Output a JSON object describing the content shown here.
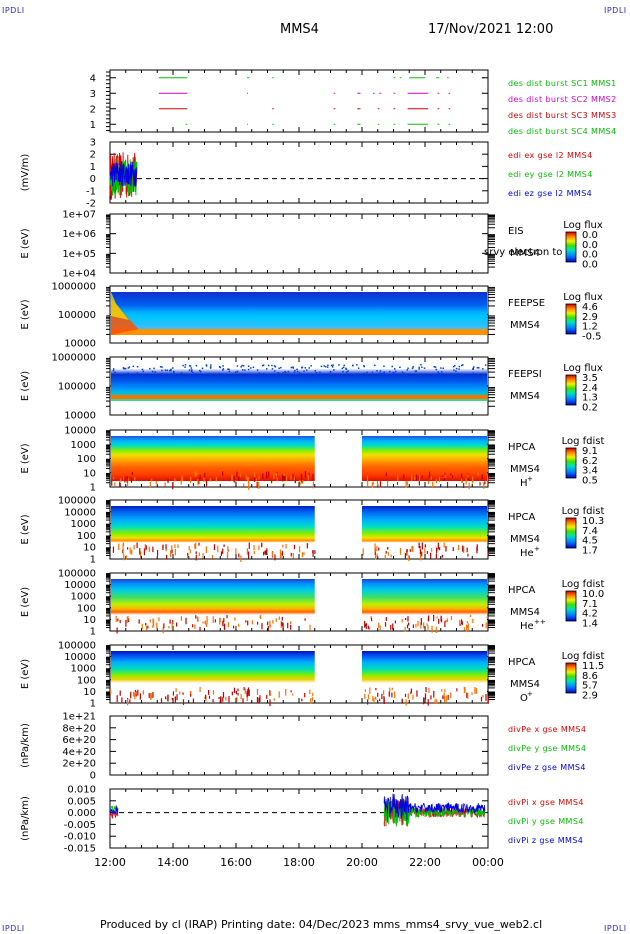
{
  "header": {
    "corner_tl": "IPDLI",
    "corner_tr": "IPDLI",
    "corner_bl": "IPDLI",
    "corner_br": "IPDLI",
    "mission": "MMS4",
    "datetime": "17/Nov/2021 12:00"
  },
  "footer": {
    "text": "Produced by cl (IRAP)   Printing date: 04/Dec/2023   mms_mms4_srvy_vue_web2.cl"
  },
  "colors": {
    "red": "#e00000",
    "green": "#00c000",
    "blue": "#0000e0",
    "magenta": "#d000d0"
  },
  "chart_data": {
    "type": "multi-panel time series / spectrogram",
    "x_axis": {
      "ticks": [
        "12:00",
        "14:00",
        "16:00",
        "18:00",
        "20:00",
        "22:00",
        "00:00"
      ],
      "range_hours": [
        12,
        24
      ]
    },
    "panels": [
      {
        "id": "burst",
        "type": "status",
        "ylim": [
          0.5,
          4.5
        ],
        "y_ticks": [
          "4",
          "3",
          "2",
          "1"
        ],
        "series": [
          {
            "name": "des dist burst SC1 MMS1",
            "color": "#00c000",
            "level": 4,
            "segments": [
              [
                13.55,
                14.45
              ],
              [
                16.35,
                16.42
              ],
              [
                17.15,
                17.2
              ],
              [
                21.0,
                21.05
              ],
              [
                21.2,
                21.25
              ],
              [
                21.5,
                22.0
              ],
              [
                22.35,
                22.45
              ],
              [
                22.7,
                22.75
              ],
              [
                23.8,
                23.9
              ]
            ]
          },
          {
            "name": "des dist burst SC2 MMS2",
            "color": "#d000d0",
            "level": 3,
            "segments": [
              [
                13.55,
                14.45
              ],
              [
                16.35,
                16.38
              ],
              [
                19.1,
                19.15
              ],
              [
                19.85,
                19.95
              ],
              [
                20.35,
                20.4
              ],
              [
                20.55,
                20.6
              ],
              [
                21.0,
                21.05
              ],
              [
                21.45,
                22.1
              ],
              [
                22.4,
                22.45
              ],
              [
                22.75,
                22.8
              ],
              [
                23.8,
                23.85
              ]
            ]
          },
          {
            "name": "des dist burst SC3 MMS3",
            "color": "#d00000",
            "level": 2,
            "segments": [
              [
                13.55,
                14.45
              ],
              [
                17.15,
                17.2
              ],
              [
                19.1,
                19.15
              ],
              [
                19.85,
                19.95
              ],
              [
                20.5,
                20.55
              ],
              [
                21.0,
                21.05
              ],
              [
                21.45,
                22.1
              ],
              [
                22.4,
                22.45
              ],
              [
                22.75,
                22.8
              ],
              [
                23.8,
                23.85
              ]
            ]
          },
          {
            "name": "des dist burst SC4 MMS4",
            "color": "#00c000",
            "level": 1,
            "segments": [
              [
                14.4,
                14.45
              ],
              [
                16.35,
                16.38
              ],
              [
                17.15,
                17.2
              ],
              [
                19.1,
                19.15
              ],
              [
                19.85,
                19.95
              ],
              [
                20.5,
                20.55
              ],
              [
                21.0,
                21.05
              ],
              [
                21.45,
                22.1
              ],
              [
                22.4,
                22.45
              ],
              [
                22.75,
                22.8
              ],
              [
                23.8,
                23.9
              ]
            ]
          }
        ]
      },
      {
        "id": "edi",
        "type": "line",
        "ylabel": "(mV/m)",
        "ylim": [
          -2,
          3
        ],
        "y_ticks": [
          "3",
          "2",
          "1",
          "0",
          "-1",
          "-2"
        ],
        "data_span_hours": [
          12.0,
          12.85
        ],
        "series": [
          {
            "name": "edi ex gse l2 MMS4",
            "color": "#e00000"
          },
          {
            "name": "edi ey gse l2 MMS4",
            "color": "#00c000"
          },
          {
            "name": "edi ez gse l2 MMS4",
            "color": "#0000e0"
          }
        ]
      },
      {
        "id": "eis",
        "type": "spectrogram",
        "ylabel": "E (eV)",
        "y_ticks": [
          "1e+07",
          "1e+06",
          "1e+05",
          "1e+04"
        ],
        "label_lines": [
          "EIS",
          "MMS4"
        ],
        "overlay_text": "srvy electron to",
        "colorbar": {
          "title": "Log flux",
          "ticks": [
            "0.0",
            "0.0",
            "0.0",
            "0.0"
          ]
        },
        "empty": true
      },
      {
        "id": "feepse",
        "type": "spectrogram",
        "ylabel": "E (eV)",
        "y_ticks": [
          "1000000",
          "100000",
          "10000"
        ],
        "label_lines": [
          "FEEPSE",
          "MMS4"
        ],
        "colorbar": {
          "title": "Log flux",
          "ticks": [
            "4.6",
            "2.9",
            "1.2",
            "-0.5"
          ]
        }
      },
      {
        "id": "feepsi",
        "type": "spectrogram",
        "ylabel": "E (eV)",
        "y_ticks": [
          "1000000",
          "100000",
          "10000"
        ],
        "label_lines": [
          "FEEPSI",
          "MMS4"
        ],
        "colorbar": {
          "title": "Log flux",
          "ticks": [
            "3.5",
            "2.4",
            "1.3",
            "0.2"
          ]
        }
      },
      {
        "id": "hpca_h",
        "type": "spectrogram",
        "ylabel": "E (eV)",
        "y_ticks": [
          "10000",
          "1000",
          "100",
          "10",
          "1"
        ],
        "label_lines": [
          "HPCA",
          "MMS4"
        ],
        "species": "H",
        "species_charge": "+",
        "gap_hours": [
          18.5,
          20.0
        ],
        "colorbar": {
          "title": "Log fdist",
          "ticks": [
            "9.1",
            "6.2",
            "3.4",
            "0.5"
          ]
        }
      },
      {
        "id": "hpca_he",
        "type": "spectrogram",
        "ylabel": "E (eV)",
        "y_ticks": [
          "100000",
          "10000",
          "1000",
          "100",
          "10",
          "1"
        ],
        "label_lines": [
          "HPCA",
          "MMS4"
        ],
        "species": "He",
        "species_charge": "+",
        "gap_hours": [
          18.5,
          20.0
        ],
        "colorbar": {
          "title": "Log fdist",
          "ticks": [
            "10.3",
            "7.4",
            "4.5",
            "1.7"
          ]
        }
      },
      {
        "id": "hpca_he2",
        "type": "spectrogram",
        "ylabel": "E (eV)",
        "y_ticks": [
          "100000",
          "10000",
          "1000",
          "100",
          "10",
          "1"
        ],
        "label_lines": [
          "HPCA",
          "MMS4"
        ],
        "species": "He",
        "species_charge": "++",
        "gap_hours": [
          18.5,
          20.0
        ],
        "colorbar": {
          "title": "Log fdist",
          "ticks": [
            "10.0",
            "7.1",
            "4.2",
            "1.4"
          ]
        }
      },
      {
        "id": "hpca_o",
        "type": "spectrogram",
        "ylabel": "E (eV)",
        "y_ticks": [
          "100000",
          "10000",
          "1000",
          "100",
          "10",
          "1"
        ],
        "label_lines": [
          "HPCA",
          "MMS4"
        ],
        "species": "O",
        "species_charge": "+",
        "gap_hours": [
          18.5,
          20.0
        ],
        "colorbar": {
          "title": "Log fdist",
          "ticks": [
            "11.5",
            "8.6",
            "5.7",
            "2.9"
          ]
        }
      },
      {
        "id": "divpe",
        "type": "line",
        "ylabel": "(nPa/km)",
        "y_ticks": [
          "1e+21",
          "8e+20",
          "6e+20",
          "4e+20",
          "2e+20",
          "0"
        ],
        "ylim": [
          0,
          1e+21
        ],
        "series": [
          {
            "name": "divPe x gse MMS4",
            "color": "#e00000"
          },
          {
            "name": "divPe y gse MMS4",
            "color": "#00c000"
          },
          {
            "name": "divPe z gse MMS4",
            "color": "#0000e0"
          }
        ]
      },
      {
        "id": "divpi",
        "type": "line",
        "ylabel": "(nPa/km)",
        "y_ticks": [
          "0.010",
          "0.005",
          "0.000",
          "-0.005",
          "-0.010",
          "-0.015"
        ],
        "ylim": [
          -0.015,
          0.01
        ],
        "series": [
          {
            "name": "divPi x gse MMS4",
            "color": "#e00000"
          },
          {
            "name": "divPi y gse MMS4",
            "color": "#00c000"
          },
          {
            "name": "divPi z gse MMS4",
            "color": "#0000e0"
          }
        ]
      }
    ]
  }
}
